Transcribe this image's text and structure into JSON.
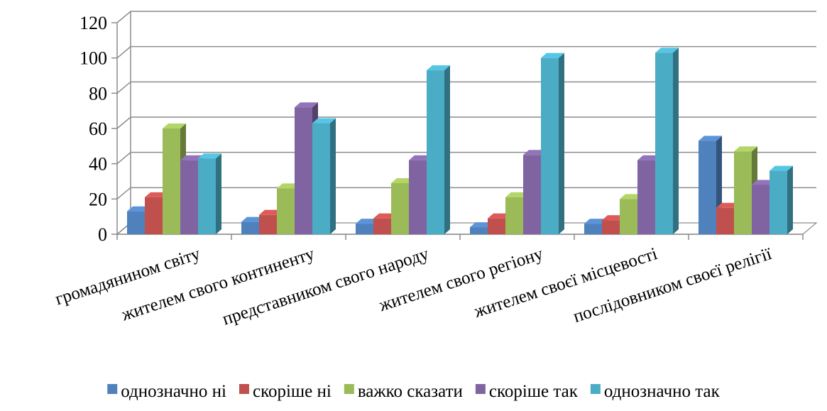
{
  "chart_data": {
    "type": "bar",
    "categories": [
      "громадянином світу",
      "жителем свого континенту",
      "представником свого народу",
      "жителем свого регіону",
      "жителем своєї місцевості",
      "послідовником своєї релігії"
    ],
    "series": [
      {
        "name": "однозначно ні",
        "color": "#4F81BD",
        "values": [
          13,
          7,
          6,
          4,
          6,
          53
        ]
      },
      {
        "name": "скоріше ні",
        "color": "#C0504D",
        "values": [
          21,
          11,
          9,
          9,
          8,
          15
        ]
      },
      {
        "name": "важко сказати",
        "color": "#9BBB59",
        "values": [
          60,
          26,
          29,
          21,
          20,
          47
        ]
      },
      {
        "name": "скоріше так",
        "color": "#8064A2",
        "values": [
          42,
          72,
          42,
          45,
          42,
          28
        ]
      },
      {
        "name": "однозначно так",
        "color": "#4BACC6",
        "values": [
          43,
          63,
          93,
          100,
          103,
          36
        ]
      }
    ],
    "yticks": [
      0,
      20,
      40,
      60,
      80,
      100,
      120
    ],
    "ylim": [
      0,
      120
    ],
    "grid": true,
    "legend_position": "bottom"
  }
}
